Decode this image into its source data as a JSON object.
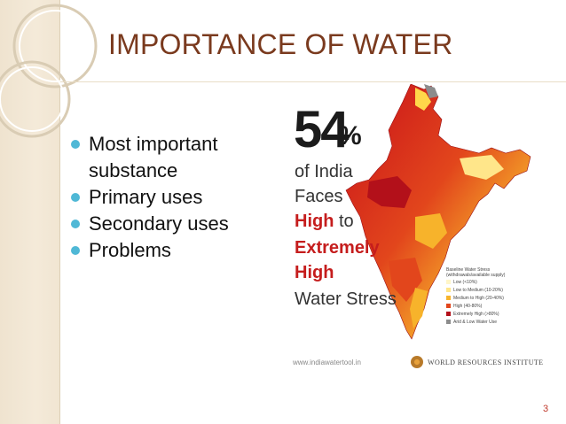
{
  "title": "IMPORTANCE OF WATER",
  "bullets": [
    "Most important substance",
    "Primary uses",
    "Secondary uses",
    "Problems"
  ],
  "infographic": {
    "percent": "54",
    "percent_sign": "%",
    "lines": [
      "of India",
      "Faces"
    ],
    "red_high": "High",
    "to": " to",
    "red_extremely": "Extremely",
    "red_high2": "High",
    "stress": "Water Stress",
    "url": "www.indiawatertool.in",
    "org": "WORLD RESOURCES INSTITUTE"
  },
  "legend": {
    "title": "Baseline Water Stress",
    "subtitle": "(withdrawals/available supply)",
    "items": [
      {
        "label": "Low (<10%)",
        "color": "#fff6c8"
      },
      {
        "label": "Low to Medium (10-20%)",
        "color": "#ffe68a"
      },
      {
        "label": "Medium to High (20-40%)",
        "color": "#f7b32b"
      },
      {
        "label": "High (40-80%)",
        "color": "#e2461c"
      },
      {
        "label": "Extremely High (>80%)",
        "color": "#b3101a"
      },
      {
        "label": "Arid & Low Water Use",
        "color": "#8c8c8c"
      }
    ]
  },
  "page_number": "3"
}
